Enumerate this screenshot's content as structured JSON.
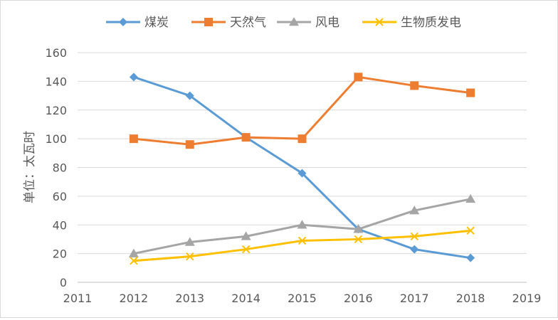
{
  "chart_data": {
    "type": "line",
    "title": "",
    "xlabel": "",
    "ylabel": "单位：太瓦时",
    "x": [
      2011,
      2012,
      2013,
      2014,
      2015,
      2016,
      2017,
      2018,
      2019
    ],
    "xlim": [
      2011,
      2019
    ],
    "ylim": [
      0,
      160
    ],
    "yticks": [
      0,
      20,
      40,
      60,
      80,
      100,
      120,
      140,
      160
    ],
    "grid": true,
    "legend_position": "top-center",
    "series": [
      {
        "name": "煤炭",
        "color": "#5B9BD5",
        "marker": "diamond",
        "points": [
          [
            2012,
            143
          ],
          [
            2013,
            130
          ],
          [
            2014,
            101
          ],
          [
            2015,
            76
          ],
          [
            2016,
            37
          ],
          [
            2017,
            23
          ],
          [
            2018,
            17
          ]
        ]
      },
      {
        "name": "天然气",
        "color": "#ED7D31",
        "marker": "square",
        "points": [
          [
            2012,
            100
          ],
          [
            2013,
            96
          ],
          [
            2014,
            101
          ],
          [
            2015,
            100
          ],
          [
            2016,
            143
          ],
          [
            2017,
            137
          ],
          [
            2018,
            132
          ]
        ]
      },
      {
        "name": "风电",
        "color": "#A5A5A5",
        "marker": "triangle",
        "points": [
          [
            2012,
            20
          ],
          [
            2013,
            28
          ],
          [
            2014,
            32
          ],
          [
            2015,
            40
          ],
          [
            2016,
            37
          ],
          [
            2017,
            50
          ],
          [
            2018,
            58
          ]
        ]
      },
      {
        "name": "生物质发电",
        "color": "#FFC000",
        "marker": "x",
        "points": [
          [
            2012,
            15
          ],
          [
            2013,
            18
          ],
          [
            2014,
            23
          ],
          [
            2015,
            29
          ],
          [
            2016,
            30
          ],
          [
            2017,
            32
          ],
          [
            2018,
            36
          ]
        ]
      }
    ]
  }
}
